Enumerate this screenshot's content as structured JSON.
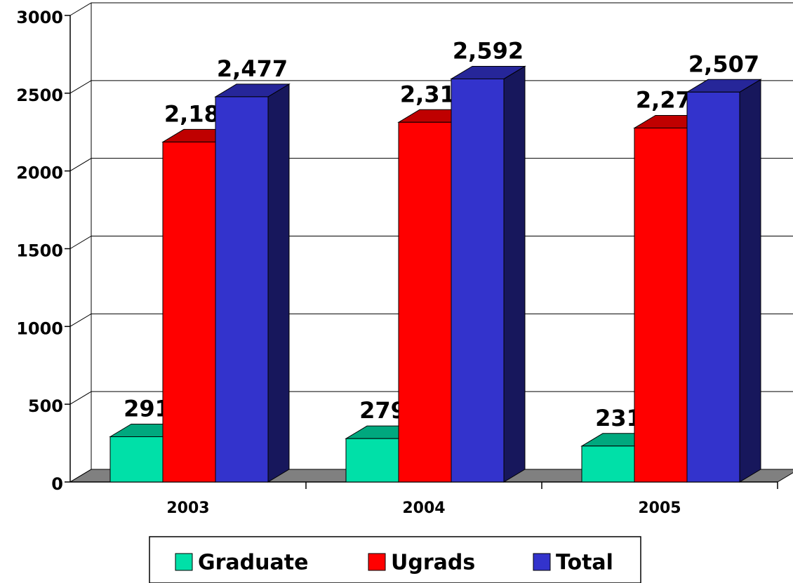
{
  "chart_data": {
    "type": "bar3d",
    "categories": [
      "2003",
      "2004",
      "2005"
    ],
    "series": [
      {
        "name": "Graduate",
        "color": "#00e0a8",
        "values": [
          291,
          279,
          231
        ]
      },
      {
        "name": "Ugrads",
        "color": "#ff0000",
        "values": [
          2186,
          2313,
          2276
        ],
        "value_labels": [
          "2,186",
          "2,313",
          "2,276"
        ]
      },
      {
        "name": "Total",
        "color": "#3333cc",
        "values": [
          2477,
          2592,
          2507
        ],
        "value_labels": [
          "2,477",
          "2,592",
          "2,507"
        ]
      }
    ],
    "ylim": [
      0,
      3000
    ],
    "yticks": [
      0,
      500,
      1000,
      1500,
      2000,
      2500,
      3000
    ],
    "grid": true,
    "legend": "bottom"
  }
}
